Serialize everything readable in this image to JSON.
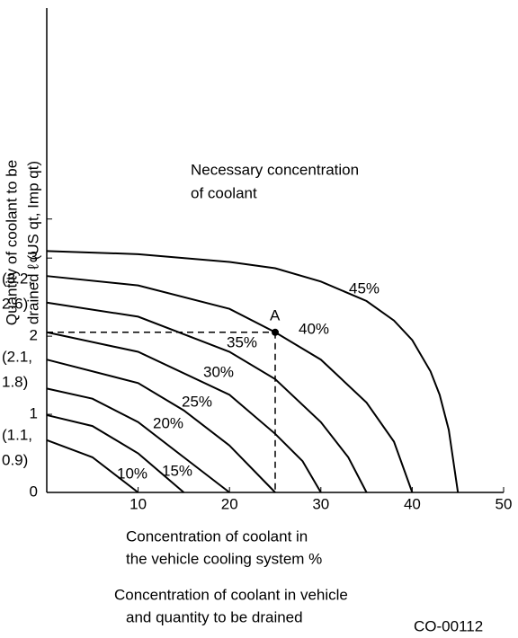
{
  "chart_data": {
    "type": "line",
    "y_label_lines": [
      "Quantity of coolant to be",
      "drained ℓ (US qt, Imp qt)"
    ],
    "x_label_lines": [
      "Concentration of coolant in",
      "the vehicle cooling system %"
    ],
    "caption_lines": [
      "Concentration of coolant in vehicle",
      "and quantity to be drained"
    ],
    "annotation_lines": [
      "Necessary concentration",
      "of coolant"
    ],
    "code": "CO-00112",
    "color": "#000000",
    "xlim": [
      0,
      50
    ],
    "xticks": [
      10,
      20,
      30,
      40,
      50
    ],
    "ylim": [
      0,
      6.2
    ],
    "yticks": [
      0,
      1,
      2,
      3
    ],
    "unlabeled_yticks": [
      3.5
    ],
    "ytick_alt_lines": [
      [
        "(1.1,",
        "0.9)"
      ],
      [
        "(2.1,",
        "1.8)"
      ],
      [
        "(3.2,",
        "2.6)"
      ]
    ],
    "point": {
      "label": "A",
      "x": 25,
      "y": 2.05
    },
    "series": [
      {
        "name": "10%",
        "x": [
          0,
          5,
          10
        ],
        "values": [
          0.67,
          0.45,
          0
        ]
      },
      {
        "name": "15%",
        "x": [
          0,
          5,
          10,
          15
        ],
        "values": [
          0.99,
          0.85,
          0.5,
          0
        ]
      },
      {
        "name": "20%",
        "x": [
          0,
          5,
          10,
          15,
          20
        ],
        "values": [
          1.33,
          1.2,
          0.9,
          0.45,
          0
        ]
      },
      {
        "name": "25%",
        "x": [
          0,
          10,
          15,
          20,
          25
        ],
        "values": [
          1.7,
          1.4,
          1.05,
          0.6,
          0
        ]
      },
      {
        "name": "30%",
        "x": [
          0,
          10,
          20,
          25,
          28,
          30
        ],
        "values": [
          2.05,
          1.8,
          1.25,
          0.75,
          0.4,
          0
        ]
      },
      {
        "name": "35%",
        "x": [
          0,
          10,
          20,
          25,
          30,
          33,
          35
        ],
        "values": [
          2.43,
          2.25,
          1.8,
          1.45,
          0.9,
          0.45,
          0
        ]
      },
      {
        "name": "40%",
        "x": [
          0,
          10,
          20,
          25,
          30,
          35,
          38,
          40
        ],
        "values": [
          2.77,
          2.65,
          2.35,
          2.05,
          1.7,
          1.15,
          0.65,
          0
        ]
      },
      {
        "name": "45%",
        "x": [
          0,
          10,
          20,
          25,
          30,
          35,
          38,
          40,
          42,
          43,
          44,
          45
        ],
        "values": [
          3.09,
          3.05,
          2.95,
          2.87,
          2.7,
          2.45,
          2.2,
          1.95,
          1.55,
          1.25,
          0.8,
          0
        ]
      }
    ]
  }
}
